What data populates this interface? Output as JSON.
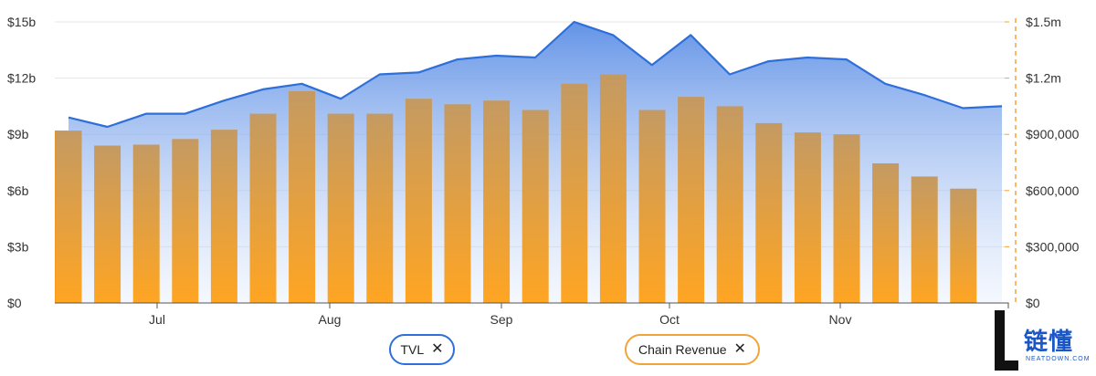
{
  "chart_data": {
    "type": "bar+area",
    "x_tick_labels": [
      "Jul",
      "Aug",
      "Sep",
      "Oct",
      "Nov"
    ],
    "y_left_ticks": [
      "$0",
      "$3b",
      "$6b",
      "$9b",
      "$12b",
      "$15b"
    ],
    "y_right_ticks": [
      "$0",
      "$300,000",
      "$600,000",
      "$900,000",
      "$1.2m",
      "$1.5m"
    ],
    "ylim_left": [
      0,
      15
    ],
    "ylim_right": [
      0,
      1500000
    ],
    "grid": true,
    "legend_position": "bottom",
    "series": [
      {
        "name": "TVL",
        "type": "area",
        "axis": "left",
        "unit": "$b",
        "color": "#2e6fd8",
        "values": [
          9.9,
          9.4,
          10.1,
          10.1,
          10.8,
          11.4,
          11.7,
          10.9,
          12.2,
          12.3,
          13.0,
          13.2,
          13.1,
          15.0,
          14.3,
          12.7,
          14.3,
          12.2,
          12.9,
          13.1,
          13.0,
          11.7,
          11.1,
          10.4,
          10.5
        ]
      },
      {
        "name": "Chain Revenue",
        "type": "bar",
        "axis": "right",
        "unit": "$",
        "color": "#f5a128",
        "values": [
          920000,
          840000,
          845000,
          875000,
          925000,
          1010000,
          1130000,
          1010000,
          1010000,
          1090000,
          1060000,
          1080000,
          1030000,
          1170000,
          1220000,
          1030000,
          1100000,
          1050000,
          960000,
          910000,
          900000,
          745000,
          675000,
          610000
        ]
      }
    ]
  },
  "legend": {
    "tvl_label": "TVL",
    "revenue_label": "Chain Revenue",
    "remove_glyph": "✕"
  },
  "logo": {
    "cn_text": "链懂",
    "en_text": "NEATDOWN.COM"
  },
  "colors": {
    "tvl_line": "#2e6fd8",
    "tvl_fill_top": "#5b8ee6",
    "bar_top": "#c79a5e",
    "bar_bottom": "#ffa522",
    "left_band": "#ff8c00",
    "right_axis": "#f5a23a",
    "grid": "#e6e6e6"
  }
}
